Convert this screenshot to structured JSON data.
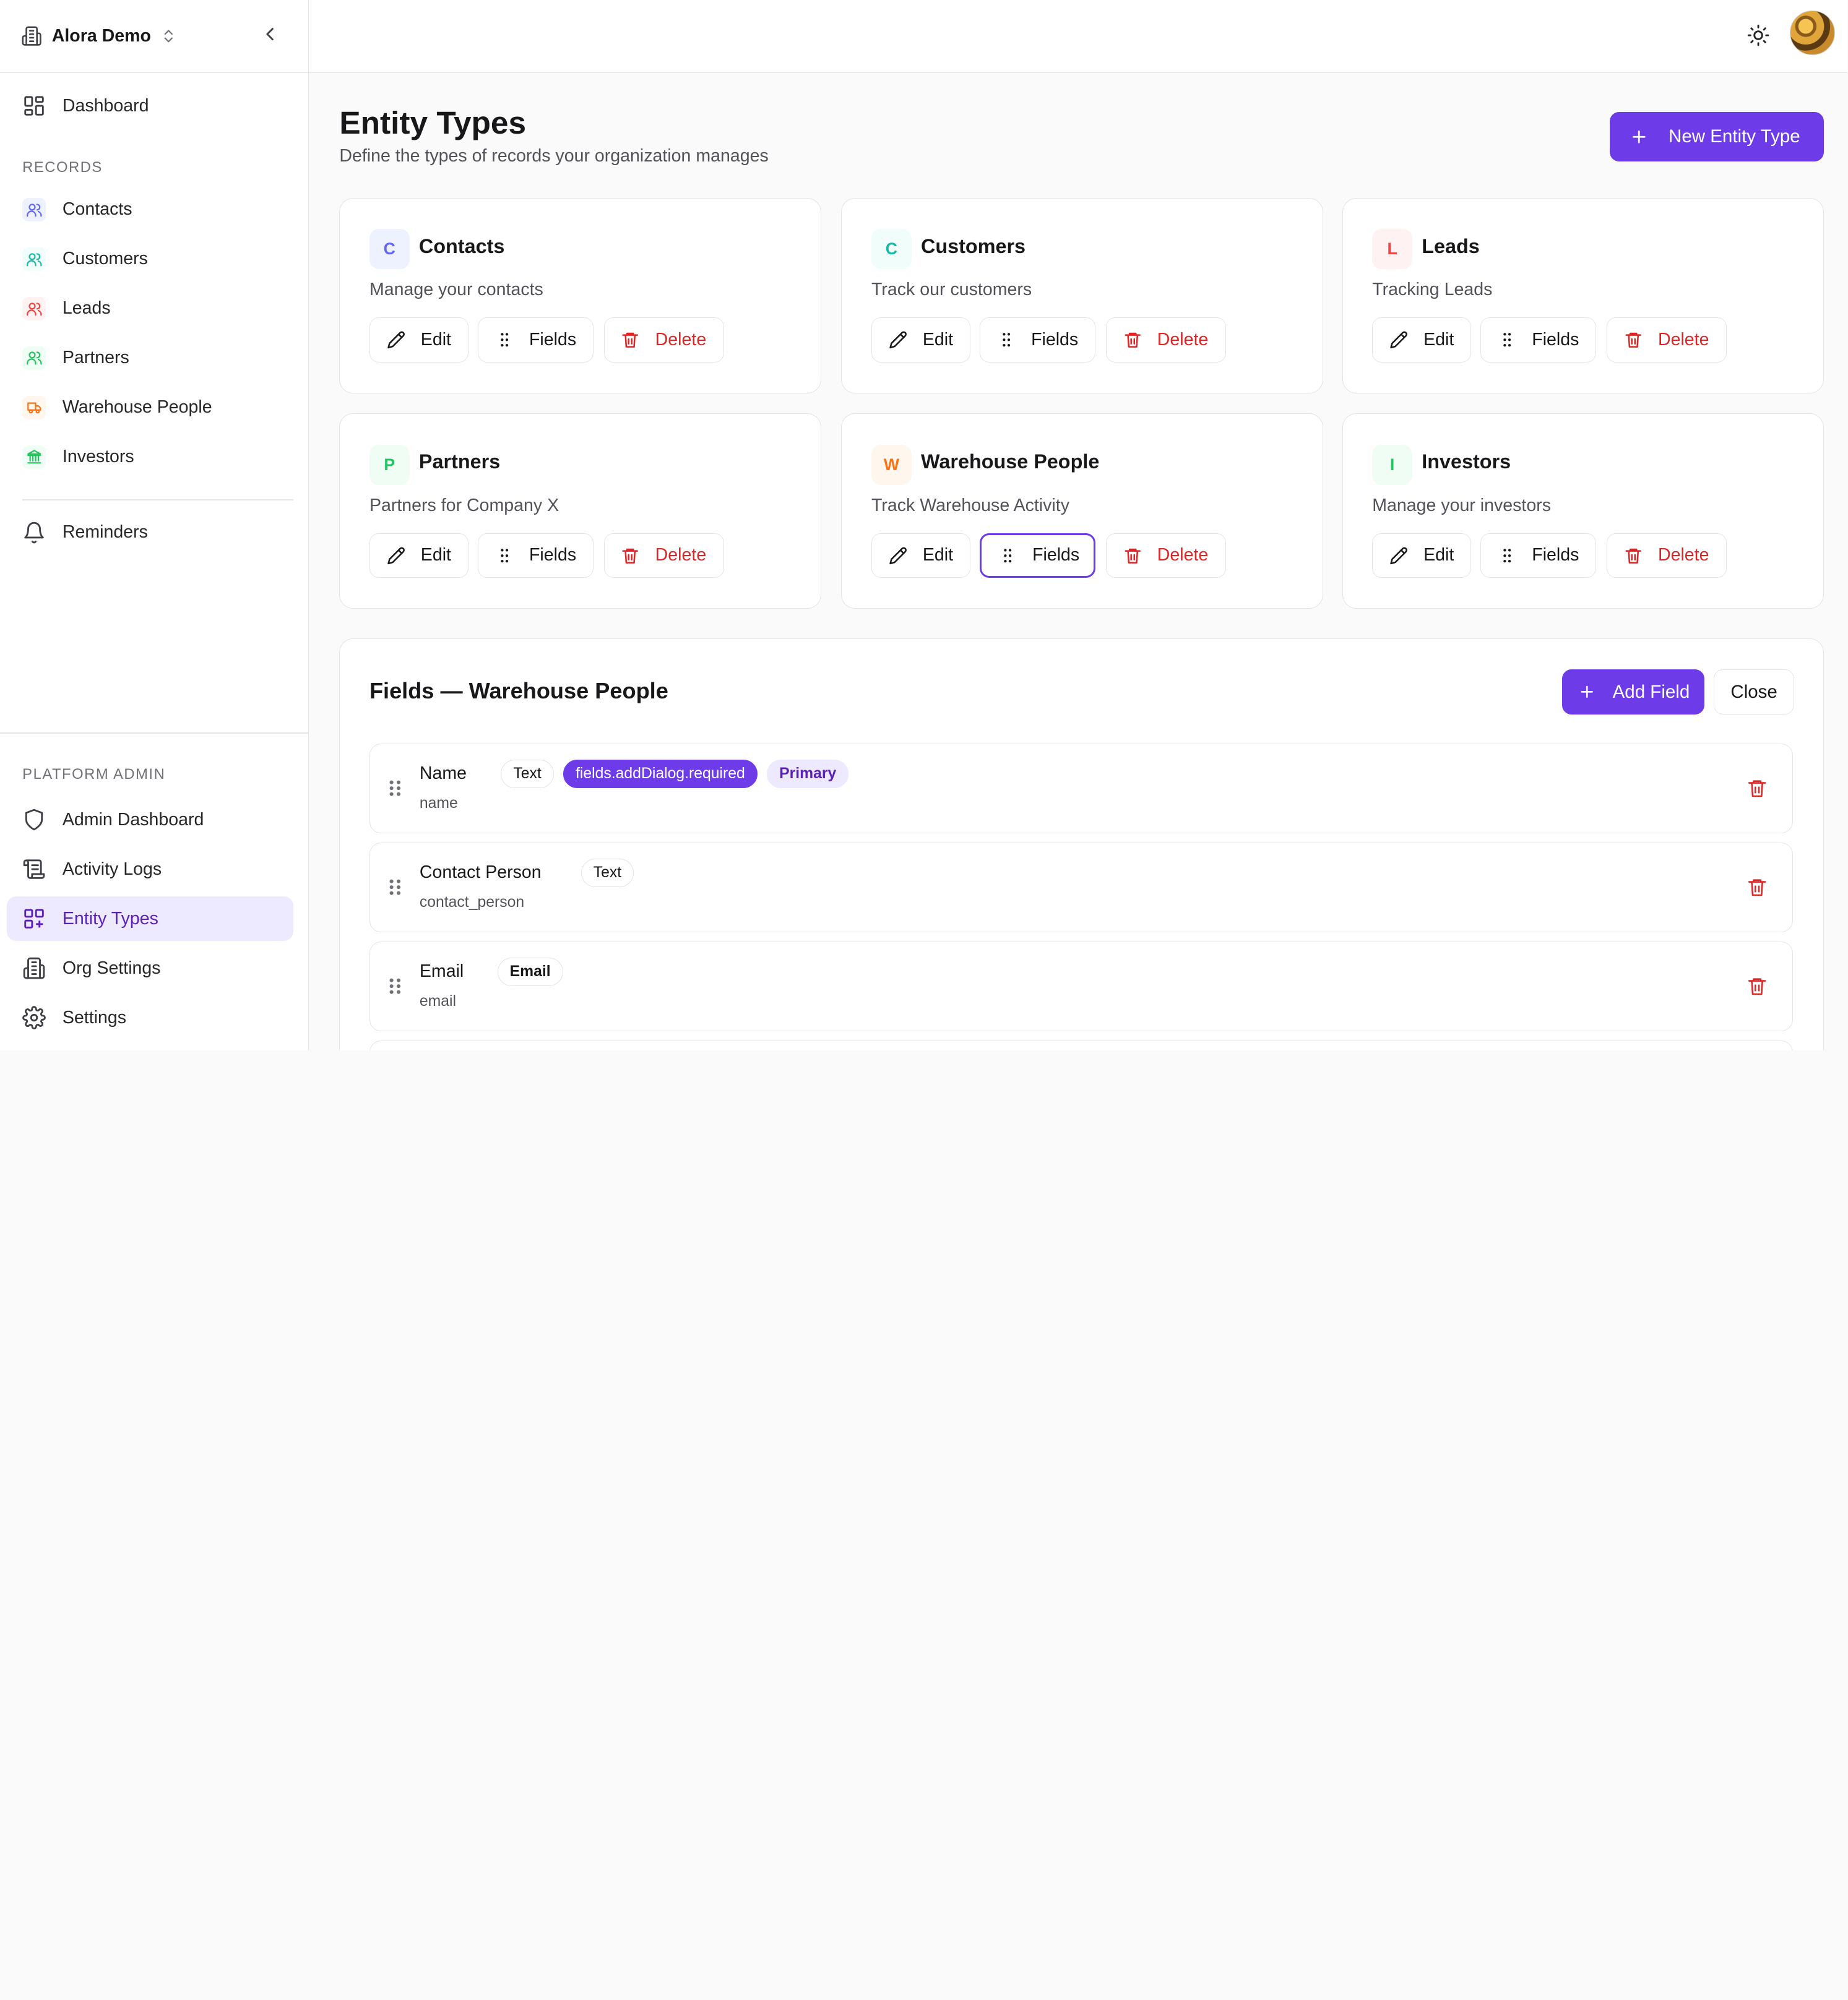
{
  "org": {
    "name": "Alora Demo"
  },
  "nav": {
    "dashboard": "Dashboard",
    "records_label": "RECORDS",
    "records": [
      {
        "label": "Contacts",
        "color": "#6366f1",
        "bg": "#eef2ff"
      },
      {
        "label": "Customers",
        "color": "#14b8a6",
        "bg": "#f0fdfa"
      },
      {
        "label": "Leads",
        "color": "#ef4444",
        "bg": "#fef2f2"
      },
      {
        "label": "Partners",
        "color": "#22c55e",
        "bg": "#f0fdf4"
      },
      {
        "label": "Warehouse People",
        "color": "#f97316",
        "bg": "#fff7ed"
      },
      {
        "label": "Investors",
        "color": "#22c55e",
        "bg": "#f0fdf4"
      }
    ],
    "reminders": "Reminders",
    "platform_label": "PLATFORM ADMIN",
    "admin": [
      {
        "label": "Admin Dashboard",
        "icon": "shield-icon"
      },
      {
        "label": "Activity Logs",
        "icon": "scroll-icon"
      },
      {
        "label": "Entity Types",
        "icon": "layout-grid-icon",
        "active": true
      },
      {
        "label": "Org Settings",
        "icon": "building-icon"
      },
      {
        "label": "Settings",
        "icon": "gear-icon"
      }
    ]
  },
  "header": {
    "title": "Entity Types",
    "subtitle": "Define the types of records your organization manages",
    "new_button": "New Entity Type"
  },
  "buttons": {
    "edit": "Edit",
    "fields": "Fields",
    "delete": "Delete"
  },
  "entity_types": [
    {
      "letter": "C",
      "name": "Contacts",
      "description": "Manage your contacts",
      "color": "#6366f1",
      "bg": "#eef2ff"
    },
    {
      "letter": "C",
      "name": "Customers",
      "description": "Track our customers",
      "color": "#14b8a6",
      "bg": "#f0fdfa"
    },
    {
      "letter": "L",
      "name": "Leads",
      "description": "Tracking Leads",
      "color": "#ef4444",
      "bg": "#fef2f2"
    },
    {
      "letter": "P",
      "name": "Partners",
      "description": "Partners for Company X",
      "color": "#22c55e",
      "bg": "#f0fdf4"
    },
    {
      "letter": "W",
      "name": "Warehouse People",
      "description": "Track Warehouse Activity",
      "color": "#f97316",
      "bg": "#fff7ed"
    },
    {
      "letter": "I",
      "name": "Investors",
      "description": "Manage your investors",
      "color": "#22c55e",
      "bg": "#f0fdf4"
    }
  ],
  "fields_panel": {
    "title": "Fields — Warehouse People",
    "add_button": "Add Field",
    "close_button": "Close",
    "fields": [
      {
        "name": "Name",
        "key": "name",
        "type": "Text",
        "required_label": "fields.addDialog.required",
        "primary_label": "Primary"
      },
      {
        "name": "Contact Person",
        "key": "contact_person",
        "type": "Text"
      },
      {
        "name": "Email",
        "key": "email",
        "type": "Email"
      }
    ]
  },
  "colors": {
    "accent": "#6d3ce8",
    "danger": "#dc2626"
  }
}
